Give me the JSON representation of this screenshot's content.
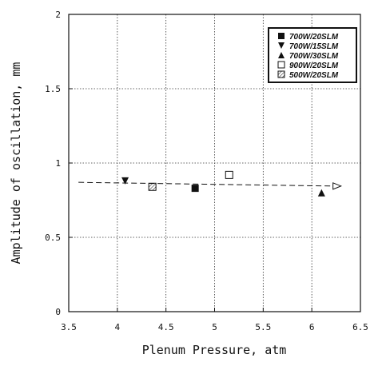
{
  "chart_data": {
    "type": "scatter",
    "title": "",
    "xlabel": "Plenum Pressure, atm",
    "ylabel": "Amplitude of oscillation, mm",
    "xlim": [
      3.5,
      6.5
    ],
    "ylim": [
      0,
      2
    ],
    "xticks": [
      "3.5",
      "4",
      "4.5",
      "5",
      "5.5",
      "6",
      "6.5"
    ],
    "yticks": [
      "0",
      "0.5",
      "1",
      "1.5",
      "2"
    ],
    "xtick_values": [
      3.5,
      4,
      4.5,
      5,
      5.5,
      6,
      6.5
    ],
    "ytick_values": [
      0,
      0.5,
      1,
      1.5,
      2
    ],
    "grid": true,
    "legend_position": "top-right",
    "series": [
      {
        "name": "700W/20SLM",
        "marker": "filled-square",
        "x": [
          4.8
        ],
        "y": [
          0.83
        ]
      },
      {
        "name": "700W/15SLM",
        "marker": "filled-triangle-down",
        "x": [
          4.08
        ],
        "y": [
          0.88
        ]
      },
      {
        "name": "700W/30SLM",
        "marker": "filled-triangle-up",
        "x": [
          6.1
        ],
        "y": [
          0.8
        ]
      },
      {
        "name": "900W/20SLM",
        "marker": "open-square",
        "x": [
          5.15
        ],
        "y": [
          0.92
        ]
      },
      {
        "name": "500W/20SLM",
        "marker": "hatched-square",
        "x": [
          4.36
        ],
        "y": [
          0.84
        ]
      }
    ],
    "trendline": {
      "style": "dashed",
      "arrow": "open-triangle",
      "x": [
        3.6,
        6.3
      ],
      "y": [
        0.87,
        0.845
      ]
    }
  }
}
